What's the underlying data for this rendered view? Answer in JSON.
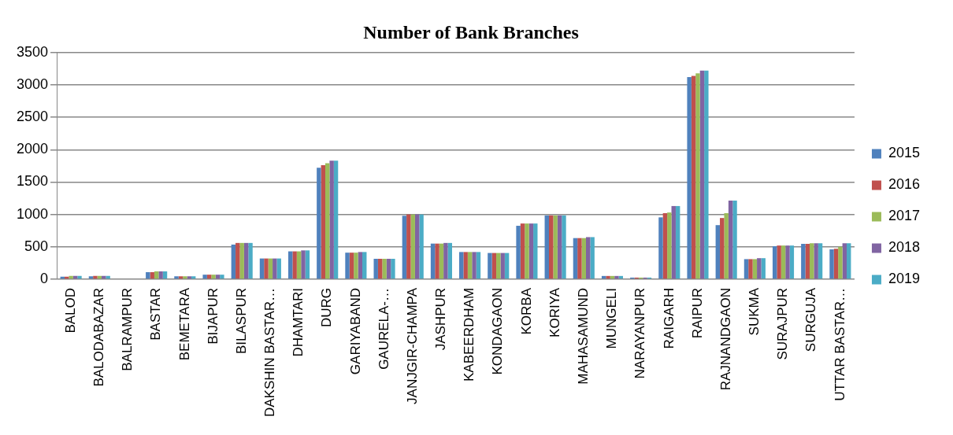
{
  "chart_data": {
    "type": "bar",
    "title": "Number of Bank Branches",
    "categories": [
      "BALOD",
      "BALODABAZAR",
      "BALRAMPUR",
      "BASTAR",
      "BEMETARA",
      "BIJAPUR",
      "BILASPUR",
      "DAKSHIN BASTAR…",
      "DHAMTARI",
      "DURG",
      "GARIYABAND",
      "GAURELA-…",
      "JANJGIR-CHAMPA",
      "JASHPUR",
      "KABEERDHAM",
      "KONDAGAON",
      "KORBA",
      "KORIYA",
      "MAHASAMUND",
      "MUNGELI",
      "NARAYANPUR",
      "RAIGARH",
      "RAIPUR",
      "RAJNANDGAON",
      "SUKMA",
      "SURAJPUR",
      "SURGUJA",
      "UTTAR BASTAR…"
    ],
    "series": [
      {
        "name": "2015",
        "color": "#4f81bd",
        "values": [
          40,
          45,
          10,
          110,
          45,
          70,
          535,
          320,
          430,
          1720,
          410,
          315,
          980,
          550,
          420,
          405,
          825,
          985,
          635,
          50,
          25,
          955,
          3120,
          835,
          310,
          510,
          545,
          460
        ]
      },
      {
        "name": "2016",
        "color": "#c0504d",
        "values": [
          40,
          50,
          10,
          110,
          45,
          70,
          560,
          320,
          430,
          1760,
          410,
          315,
          1000,
          550,
          420,
          405,
          860,
          985,
          635,
          50,
          25,
          1020,
          3140,
          945,
          310,
          520,
          545,
          470
        ]
      },
      {
        "name": "2017",
        "color": "#9bbb59",
        "values": [
          50,
          50,
          10,
          120,
          45,
          70,
          560,
          320,
          430,
          1790,
          410,
          315,
          1000,
          550,
          420,
          405,
          860,
          985,
          635,
          50,
          25,
          1030,
          3180,
          1020,
          310,
          520,
          555,
          500
        ]
      },
      {
        "name": "2018",
        "color": "#8064a2",
        "values": [
          50,
          50,
          10,
          120,
          45,
          70,
          560,
          320,
          445,
          1830,
          420,
          315,
          1000,
          560,
          420,
          405,
          860,
          985,
          650,
          50,
          25,
          1130,
          3220,
          1215,
          325,
          520,
          555,
          555
        ]
      },
      {
        "name": "2019",
        "color": "#4bacc6",
        "values": [
          50,
          50,
          10,
          120,
          45,
          70,
          560,
          320,
          445,
          1830,
          420,
          315,
          1000,
          560,
          420,
          405,
          860,
          985,
          650,
          50,
          25,
          1130,
          3220,
          1215,
          325,
          520,
          555,
          555
        ]
      }
    ],
    "ylim": [
      0,
      3500
    ],
    "yticks": [
      0,
      500,
      1000,
      1500,
      2000,
      2500,
      3000,
      3500
    ],
    "grid": "y",
    "legend": "right"
  }
}
